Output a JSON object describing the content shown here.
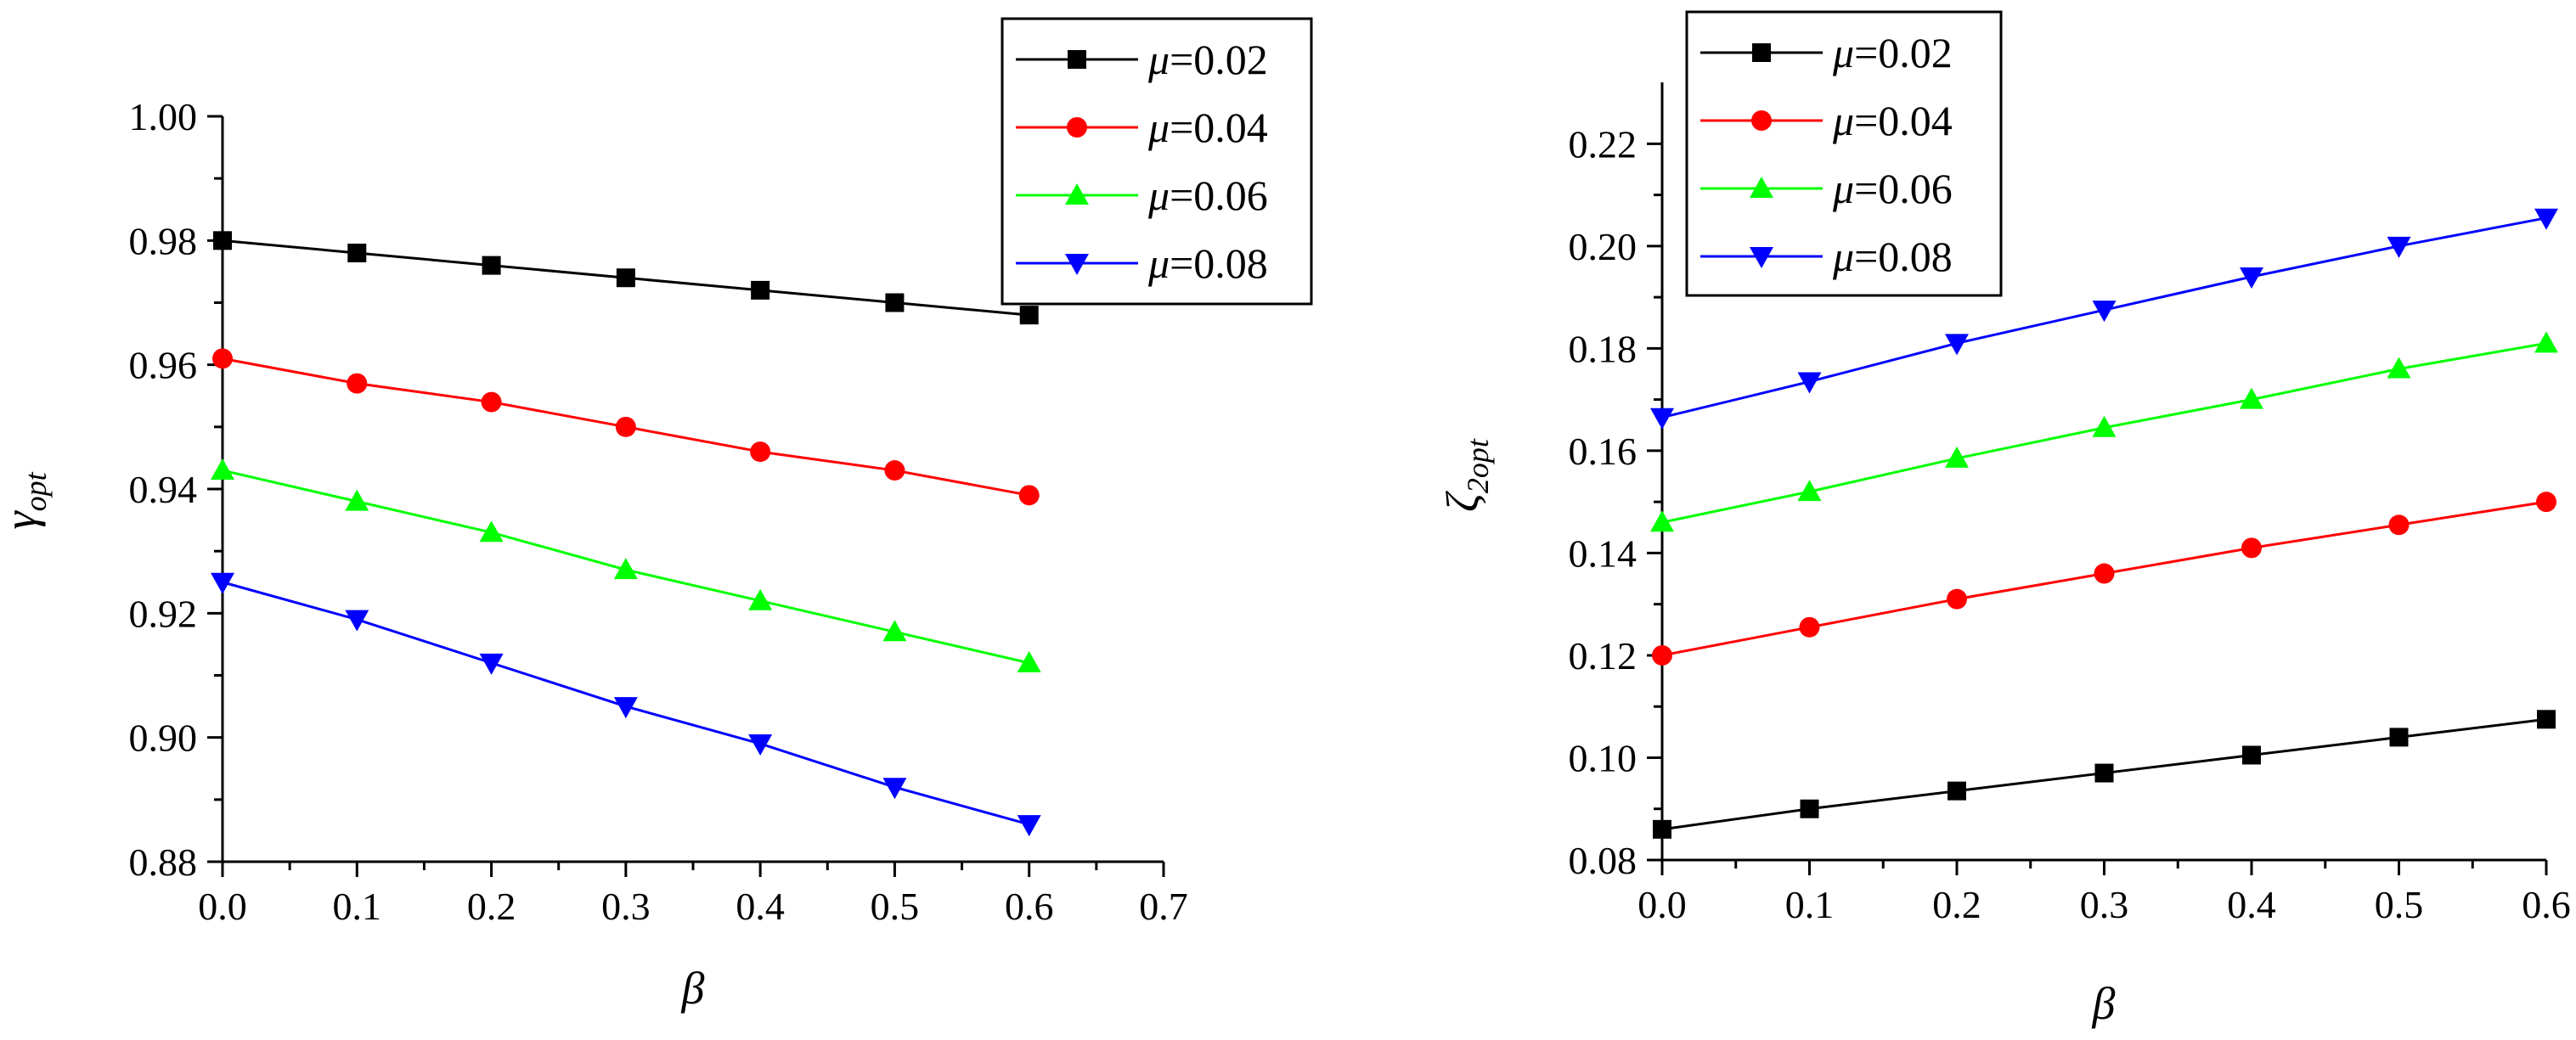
{
  "chart_data": [
    {
      "type": "line",
      "title": "",
      "xlabel": "β",
      "ylabel_symbol": "γ",
      "ylabel_subscript": "opt",
      "xlim": [
        0.0,
        0.7
      ],
      "ylim": [
        0.88,
        1.0
      ],
      "xticks": [
        0.0,
        0.1,
        0.2,
        0.3,
        0.4,
        0.5,
        0.6,
        0.7
      ],
      "xtick_labels": [
        "0.0",
        "0.1",
        "0.2",
        "0.3",
        "0.4",
        "0.5",
        "0.6",
        "0.7"
      ],
      "yticks": [
        0.88,
        0.9,
        0.92,
        0.94,
        0.96,
        0.98,
        1.0
      ],
      "ytick_labels": [
        "0.88",
        "0.90",
        "0.92",
        "0.94",
        "0.96",
        "0.98",
        "1.00"
      ],
      "grid": false,
      "legend_position": "top-right",
      "x": [
        0.0,
        0.1,
        0.2,
        0.3,
        0.4,
        0.5,
        0.6
      ],
      "series": [
        {
          "name": "μ=0.02",
          "symbol": "μ",
          "value_text": "=0.02",
          "color": "#000000",
          "marker": "square",
          "values": [
            0.98,
            0.978,
            0.976,
            0.974,
            0.972,
            0.97,
            0.968
          ]
        },
        {
          "name": "μ=0.04",
          "symbol": "μ",
          "value_text": "=0.04",
          "color": "#ff0000",
          "marker": "circle",
          "values": [
            0.961,
            0.957,
            0.954,
            0.95,
            0.946,
            0.943,
            0.939
          ]
        },
        {
          "name": "μ=0.06",
          "symbol": "μ",
          "value_text": "=0.06",
          "color": "#00ff00",
          "marker": "triangle-up",
          "values": [
            0.943,
            0.938,
            0.933,
            0.927,
            0.922,
            0.917,
            0.912
          ]
        },
        {
          "name": "μ=0.08",
          "symbol": "μ",
          "value_text": "=0.08",
          "color": "#0000ff",
          "marker": "triangle-down",
          "values": [
            0.925,
            0.919,
            0.912,
            0.905,
            0.899,
            0.892,
            0.886
          ]
        }
      ]
    },
    {
      "type": "line",
      "title": "",
      "xlabel": "β",
      "ylabel_symbol": "ζ",
      "ylabel_subscript": "2opt",
      "xlim": [
        0.0,
        0.6
      ],
      "ylim": [
        0.08,
        0.232
      ],
      "xticks": [
        0.0,
        0.1,
        0.2,
        0.3,
        0.4,
        0.5,
        0.6
      ],
      "xtick_labels": [
        "0.0",
        "0.1",
        "0.2",
        "0.3",
        "0.4",
        "0.5",
        "0.6"
      ],
      "yticks": [
        0.08,
        0.1,
        0.12,
        0.14,
        0.16,
        0.18,
        0.2,
        0.22
      ],
      "ytick_labels": [
        "0.08",
        "0.10",
        "0.12",
        "0.14",
        "0.16",
        "0.18",
        "0.20",
        "0.22"
      ],
      "grid": false,
      "legend_position": "top-left",
      "x": [
        0.0,
        0.1,
        0.2,
        0.3,
        0.4,
        0.5,
        0.6
      ],
      "series": [
        {
          "name": "μ=0.02",
          "symbol": "μ",
          "value_text": "=0.02",
          "color": "#000000",
          "marker": "square",
          "values": [
            0.086,
            0.09,
            0.0935,
            0.097,
            0.1005,
            0.104,
            0.1075
          ]
        },
        {
          "name": "μ=0.04",
          "symbol": "μ",
          "value_text": "=0.04",
          "color": "#ff0000",
          "marker": "circle",
          "values": [
            0.12,
            0.1255,
            0.131,
            0.136,
            0.141,
            0.1455,
            0.15
          ]
        },
        {
          "name": "μ=0.06",
          "symbol": "μ",
          "value_text": "=0.06",
          "color": "#00ff00",
          "marker": "triangle-up",
          "values": [
            0.146,
            0.152,
            0.1585,
            0.1645,
            0.17,
            0.176,
            0.181
          ]
        },
        {
          "name": "μ=0.08",
          "symbol": "μ",
          "value_text": "=0.08",
          "color": "#0000ff",
          "marker": "triangle-down",
          "values": [
            0.1665,
            0.1735,
            0.181,
            0.1875,
            0.194,
            0.2,
            0.2055
          ]
        }
      ]
    }
  ]
}
